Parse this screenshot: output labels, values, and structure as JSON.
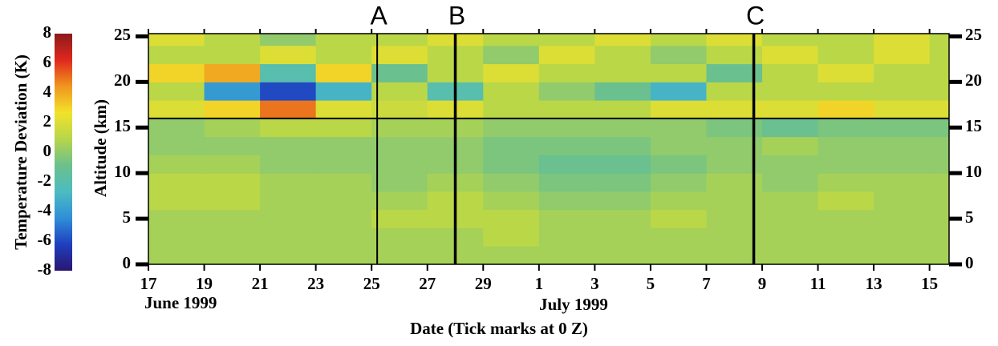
{
  "chart_data": {
    "type": "heatmap",
    "colorbar_label": "Temperature Deviation (K)",
    "ylabel": "Altitude (km)",
    "xlabel": "Date (Tick marks at 0 Z)",
    "month_labels": [
      "June 1999",
      "July 1999"
    ],
    "xlim": [
      0,
      28.7
    ],
    "xticks": [
      {
        "value": 0,
        "label": "17"
      },
      {
        "value": 2,
        "label": "19"
      },
      {
        "value": 4,
        "label": "21"
      },
      {
        "value": 6,
        "label": "23"
      },
      {
        "value": 8,
        "label": "25"
      },
      {
        "value": 10,
        "label": "27"
      },
      {
        "value": 12,
        "label": "29"
      },
      {
        "value": 14,
        "label": "1"
      },
      {
        "value": 16,
        "label": "3"
      },
      {
        "value": 18,
        "label": "5"
      },
      {
        "value": 20,
        "label": "7"
      },
      {
        "value": 22,
        "label": "9"
      },
      {
        "value": 24,
        "label": "11"
      },
      {
        "value": 26,
        "label": "13"
      },
      {
        "value": 28,
        "label": "15"
      }
    ],
    "ylim": [
      0,
      25.3
    ],
    "yticks": [
      0,
      5,
      10,
      15,
      20,
      25
    ],
    "clim": [
      -8,
      8
    ],
    "cticks": [
      -8,
      -6,
      -4,
      -2,
      0,
      2,
      4,
      6,
      8
    ],
    "colormap": [
      "#2a1670",
      "#1f3fbf",
      "#2f8fd8",
      "#4cbcc0",
      "#6cc08c",
      "#b6d64a",
      "#f2e22a",
      "#f0961e",
      "#e0281e",
      "#8b1a1a"
    ],
    "xbins": [
      0,
      2,
      4,
      6,
      8,
      10,
      12,
      14,
      16,
      18,
      20,
      22,
      24,
      26,
      28,
      28.7
    ],
    "ybins": [
      0,
      2,
      4,
      6,
      8,
      10,
      12,
      14,
      16,
      18,
      20,
      22,
      24,
      25.3
    ],
    "z": [
      [
        0.5,
        0.5,
        0.5,
        0.5,
        0.5,
        0.5,
        0.5,
        0.5,
        0.5,
        0.5,
        0.5,
        0.5,
        0.5,
        0.5,
        0.5
      ],
      [
        0.5,
        0.5,
        0.5,
        0.5,
        0.5,
        0.5,
        1,
        0.5,
        0.5,
        0.5,
        0.5,
        0.5,
        0.5,
        0.5,
        0.5
      ],
      [
        0.5,
        0.5,
        0.5,
        0.5,
        1,
        1,
        1,
        0.5,
        0.5,
        1,
        0.5,
        0.5,
        0.5,
        0.5,
        0.5
      ],
      [
        1,
        1,
        0.5,
        0.5,
        0.5,
        1,
        0.5,
        0,
        0,
        0.5,
        0.5,
        0.5,
        1,
        0.5,
        0.5
      ],
      [
        1,
        1,
        0.5,
        0.5,
        0,
        0.5,
        0,
        -0.5,
        -0.5,
        0,
        0.5,
        0,
        0.5,
        0.5,
        0.5
      ],
      [
        0.5,
        0.5,
        0,
        0,
        0,
        0,
        -0.5,
        -1,
        -1,
        -0.5,
        0,
        0,
        0,
        0,
        0
      ],
      [
        0,
        0,
        0,
        0,
        0,
        0,
        -0.5,
        -0.5,
        -0.5,
        0,
        0,
        0.5,
        0,
        0,
        0
      ],
      [
        0,
        0.5,
        1,
        1,
        0.5,
        0.5,
        0,
        0,
        0,
        0,
        -0.5,
        -1,
        -0.5,
        -0.5,
        -0.5
      ],
      [
        2,
        3,
        5,
        2,
        1.5,
        2,
        1,
        1,
        1,
        2,
        2,
        2,
        3,
        2,
        2
      ],
      [
        1,
        -4,
        -6,
        -3,
        1,
        -2,
        1,
        0,
        -1,
        -3,
        1,
        1,
        1,
        1,
        1
      ],
      [
        3,
        4,
        -2,
        3,
        -1,
        1,
        2,
        1,
        1,
        1,
        -1,
        1,
        2,
        1,
        1
      ],
      [
        1,
        1,
        2,
        1,
        2,
        1,
        0,
        2,
        1,
        0,
        1,
        2,
        1,
        2,
        1
      ],
      [
        2,
        1,
        0,
        1,
        1,
        2,
        1,
        1,
        2,
        1,
        2,
        1,
        1,
        2,
        1
      ]
    ],
    "markers": [
      {
        "label": "A",
        "x": 8.2
      },
      {
        "label": "B",
        "x": 11.0
      },
      {
        "label": "C",
        "x": 21.7
      }
    ],
    "hline": 16
  }
}
